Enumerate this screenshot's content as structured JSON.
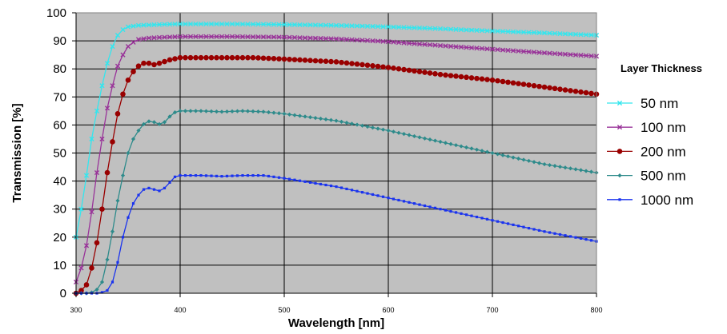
{
  "chart_data": {
    "type": "line",
    "title": "",
    "xlabel": "Wavelength [nm]",
    "ylabel": "Transmission [%]",
    "xlim": [
      300,
      800
    ],
    "ylim": [
      0,
      100
    ],
    "x_ticks": [
      "300",
      "400",
      "500",
      "600",
      "700",
      "800"
    ],
    "y_ticks": [
      "0",
      "10",
      "20",
      "30",
      "40",
      "50",
      "60",
      "70",
      "80",
      "90",
      "100"
    ],
    "grid": true,
    "legend": {
      "title": "Layer Thickness",
      "placement": "right"
    },
    "series": [
      {
        "name": "50 nm",
        "color": "#33e6ee",
        "marker": "x",
        "points": [
          [
            300,
            20
          ],
          [
            305,
            30
          ],
          [
            310,
            42
          ],
          [
            315,
            55
          ],
          [
            320,
            65
          ],
          [
            325,
            74
          ],
          [
            330,
            82
          ],
          [
            335,
            88
          ],
          [
            340,
            92
          ],
          [
            345,
            94
          ],
          [
            350,
            95
          ],
          [
            360,
            95.5
          ],
          [
            380,
            95.8
          ],
          [
            400,
            96
          ],
          [
            450,
            96
          ],
          [
            500,
            95.8
          ],
          [
            550,
            95.5
          ],
          [
            600,
            95
          ],
          [
            650,
            94.3
          ],
          [
            700,
            93.5
          ],
          [
            750,
            92.8
          ],
          [
            800,
            92
          ]
        ]
      },
      {
        "name": "100 nm",
        "color": "#993399",
        "marker": "x",
        "points": [
          [
            300,
            4
          ],
          [
            305,
            9
          ],
          [
            310,
            17
          ],
          [
            315,
            29
          ],
          [
            320,
            43
          ],
          [
            325,
            55
          ],
          [
            330,
            66
          ],
          [
            335,
            74
          ],
          [
            340,
            81
          ],
          [
            345,
            85
          ],
          [
            350,
            88
          ],
          [
            355,
            89.5
          ],
          [
            360,
            90.5
          ],
          [
            370,
            91
          ],
          [
            380,
            91.2
          ],
          [
            400,
            91.5
          ],
          [
            450,
            91.5
          ],
          [
            500,
            91.3
          ],
          [
            550,
            90.7
          ],
          [
            600,
            89.7
          ],
          [
            650,
            88.3
          ],
          [
            700,
            87
          ],
          [
            750,
            85.7
          ],
          [
            800,
            84.5
          ]
        ]
      },
      {
        "name": "200 nm",
        "color": "#990000",
        "marker": "circle",
        "points": [
          [
            300,
            0
          ],
          [
            305,
            1
          ],
          [
            310,
            3
          ],
          [
            315,
            9
          ],
          [
            320,
            18
          ],
          [
            325,
            30
          ],
          [
            330,
            43
          ],
          [
            335,
            54
          ],
          [
            340,
            64
          ],
          [
            345,
            71
          ],
          [
            350,
            76
          ],
          [
            355,
            79
          ],
          [
            360,
            81
          ],
          [
            365,
            82
          ],
          [
            370,
            82
          ],
          [
            375,
            81.5
          ],
          [
            380,
            82
          ],
          [
            390,
            83.2
          ],
          [
            400,
            84
          ],
          [
            450,
            84
          ],
          [
            470,
            84
          ],
          [
            500,
            83.5
          ],
          [
            550,
            82.5
          ],
          [
            600,
            80.5
          ],
          [
            650,
            78
          ],
          [
            700,
            76
          ],
          [
            750,
            73.5
          ],
          [
            800,
            71
          ]
        ]
      },
      {
        "name": "500 nm",
        "color": "#2e8b8b",
        "marker": "diamond",
        "points": [
          [
            300,
            0
          ],
          [
            310,
            0
          ],
          [
            315,
            0.3
          ],
          [
            320,
            1.3
          ],
          [
            325,
            4
          ],
          [
            330,
            12
          ],
          [
            335,
            22
          ],
          [
            340,
            33
          ],
          [
            345,
            42
          ],
          [
            350,
            50
          ],
          [
            355,
            55
          ],
          [
            360,
            58
          ],
          [
            365,
            60.3
          ],
          [
            370,
            61.3
          ],
          [
            375,
            61
          ],
          [
            380,
            60.3
          ],
          [
            385,
            61
          ],
          [
            390,
            63
          ],
          [
            395,
            64.5
          ],
          [
            400,
            65
          ],
          [
            420,
            65
          ],
          [
            440,
            64.7
          ],
          [
            460,
            65
          ],
          [
            480,
            64.7
          ],
          [
            500,
            64
          ],
          [
            550,
            61.5
          ],
          [
            600,
            58
          ],
          [
            650,
            54
          ],
          [
            700,
            50
          ],
          [
            750,
            46
          ],
          [
            800,
            43
          ]
        ]
      },
      {
        "name": "1000 nm",
        "color": "#1a33ee",
        "marker": "square",
        "points": [
          [
            300,
            0
          ],
          [
            320,
            0
          ],
          [
            325,
            0.3
          ],
          [
            330,
            1
          ],
          [
            335,
            4
          ],
          [
            340,
            11
          ],
          [
            345,
            20
          ],
          [
            350,
            27
          ],
          [
            355,
            32
          ],
          [
            360,
            35
          ],
          [
            365,
            37
          ],
          [
            370,
            37.5
          ],
          [
            375,
            37
          ],
          [
            380,
            36.5
          ],
          [
            385,
            37.5
          ],
          [
            390,
            39.5
          ],
          [
            395,
            41.5
          ],
          [
            400,
            42
          ],
          [
            420,
            42
          ],
          [
            440,
            41.7
          ],
          [
            460,
            42
          ],
          [
            480,
            42
          ],
          [
            500,
            41
          ],
          [
            550,
            38
          ],
          [
            600,
            34
          ],
          [
            650,
            30
          ],
          [
            700,
            26
          ],
          [
            750,
            22
          ],
          [
            800,
            18.5
          ]
        ]
      }
    ]
  }
}
